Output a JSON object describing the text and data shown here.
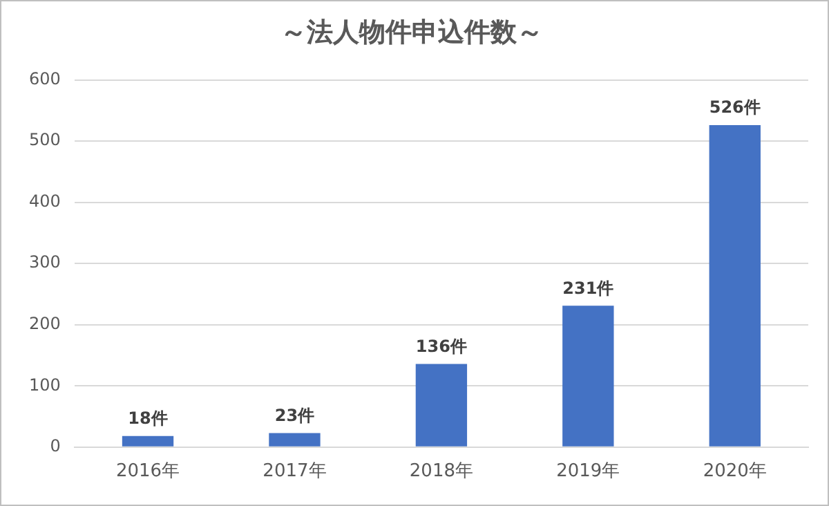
{
  "chart_data": {
    "type": "bar",
    "title": "～法人物件申込件数～",
    "categories": [
      "2016年",
      "2017年",
      "2018年",
      "2019年",
      "2020年"
    ],
    "values": [
      18,
      23,
      136,
      231,
      526
    ],
    "value_labels": [
      "18件",
      "23件",
      "136件",
      "231件",
      "526件"
    ],
    "color": "#4472c4",
    "ylim": [
      0,
      600
    ],
    "yticks": [
      0,
      100,
      200,
      300,
      400,
      500,
      600
    ],
    "grid": "y",
    "legend": false
  }
}
